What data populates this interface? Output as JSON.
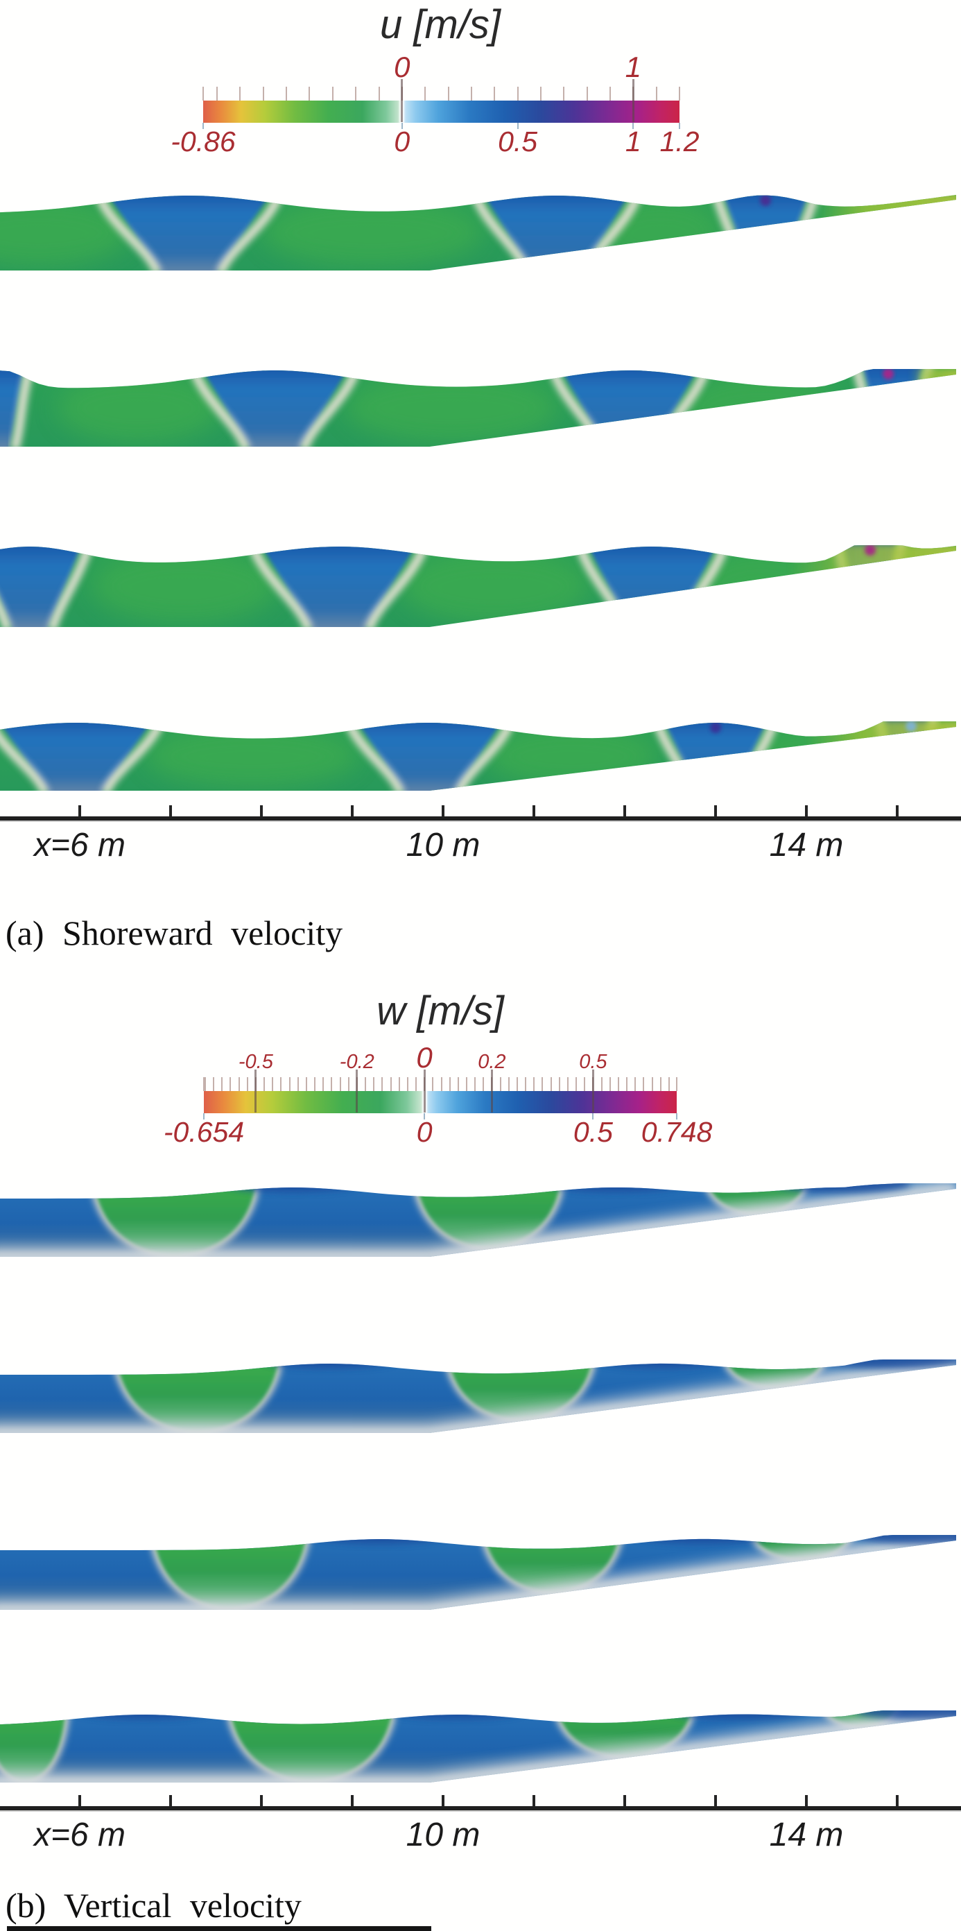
{
  "colors": {
    "label_red": "#a92d32",
    "text_dark": "#1b1b1b",
    "body_green": "#2da156",
    "crest_blue": "#2273bc",
    "band_white": "#e9e3d6",
    "shallow_yellow_green": "#a0c337",
    "breaking_magenta": "#b02387"
  },
  "chart_data": [
    {
      "id": "a",
      "type": "heatmap",
      "subtype": "contour time snapshots of velocity field over a sloping beach",
      "title": "u [m/s]",
      "caption": "(a) Shoreward velocity",
      "quantity": "Shoreward velocity",
      "units": "m/s",
      "colorbar": {
        "min": -0.86,
        "max": 1.2,
        "minor_tick_step": 0.1,
        "above_labels": [
          {
            "value": 0,
            "label": "0",
            "size": "lg"
          },
          {
            "value": 1,
            "label": "1",
            "size": "lg"
          }
        ],
        "below_labels": [
          {
            "value": -0.86,
            "label": "-0.86"
          },
          {
            "value": 0,
            "label": "0"
          },
          {
            "value": 0.5,
            "label": "0.5"
          },
          {
            "value": 1,
            "label": "1"
          },
          {
            "value": 1.2,
            "label": "1.2"
          }
        ]
      },
      "x_axis": {
        "unit": "m",
        "tick_min": 6,
        "tick_max": 15,
        "tick_step": 1,
        "labels": [
          {
            "value": 6,
            "label": "x=6 m"
          },
          {
            "value": 10,
            "label": "10 m"
          },
          {
            "value": 14,
            "label": "14 m"
          }
        ]
      },
      "bathymetry": {
        "flat_bottom_until_m": 9.85,
        "shore_tip_m": 15.65
      },
      "snapshots": [
        {
          "crests_m": [
            7.2,
            11.25,
            13.55
          ],
          "crest_halfwidth_m": [
            0.95,
            0.85,
            0.5
          ],
          "markers": [
            {
              "m": 13.55,
              "color": "#4c2b90"
            }
          ],
          "shallow_from_m": 14.1
        },
        {
          "crests_m": [
            5.15,
            8.15,
            12.05,
            14.95
          ],
          "crest_halfwidth_m": [
            0.25,
            0.85,
            0.8,
            0.35
          ],
          "markers": [
            {
              "m": 14.9,
              "color": "#b02387"
            }
          ],
          "shallow_from_m": 15.15
        },
        {
          "crests_m": [
            5.45,
            8.85,
            12.3,
            14.7
          ],
          "crest_halfwidth_m": [
            0.6,
            0.9,
            0.75,
            0.3
          ],
          "markers": [
            {
              "m": 14.7,
              "color": "#a82387"
            }
          ],
          "shallow_from_m": 13.8,
          "left_pale": true
        },
        {
          "crests_m": [
            5.95,
            9.85,
            13.0,
            15.1
          ],
          "crest_halfwidth_m": [
            0.9,
            0.85,
            0.6,
            0.25
          ],
          "markers": [
            {
              "m": 13.0,
              "color": "#3b2f95"
            },
            {
              "m": 15.15,
              "color": "#7fb2d9"
            }
          ],
          "shallow_from_m": 14.0,
          "left_pale": true
        }
      ]
    },
    {
      "id": "b",
      "type": "heatmap",
      "subtype": "contour time snapshots of velocity field over a sloping beach",
      "title": "w [m/s]",
      "caption": "(b) Vertical velocity",
      "quantity": "Vertical velocity",
      "units": "m/s",
      "colorbar": {
        "min": -0.654,
        "max": 0.748,
        "minor_tick_step": 0.025,
        "above_labels": [
          {
            "value": -0.5,
            "label": "-0.5",
            "size": "sm"
          },
          {
            "value": -0.2,
            "label": "-0.2",
            "size": "sm"
          },
          {
            "value": 0,
            "label": "0",
            "size": "lg"
          },
          {
            "value": 0.2,
            "label": "0.2",
            "size": "sm"
          },
          {
            "value": 0.5,
            "label": "0.5",
            "size": "sm"
          }
        ],
        "below_labels": [
          {
            "value": -0.654,
            "label": "-0.654"
          },
          {
            "value": 0,
            "label": "0"
          },
          {
            "value": 0.5,
            "label": "0.5"
          },
          {
            "value": 0.748,
            "label": "0.748"
          }
        ]
      },
      "x_axis": {
        "unit": "m",
        "tick_min": 6,
        "tick_max": 15,
        "tick_step": 1,
        "labels": [
          {
            "value": 6,
            "label": "x=6 m"
          },
          {
            "value": 10,
            "label": "10 m"
          },
          {
            "value": 14,
            "label": "14 m"
          }
        ]
      },
      "bathymetry": {
        "flat_bottom_until_m": 9.85,
        "shore_tip_m": 15.65
      },
      "snapshots": [
        {
          "blobs_m": [
            [
              7.05,
              0.9
            ],
            [
              10.5,
              0.8
            ],
            [
              13.45,
              0.55
            ]
          ],
          "crests_m": [
            8.35,
            11.9,
            14.4
          ]
        },
        {
          "blobs_m": [
            [
              7.3,
              0.9
            ],
            [
              10.85,
              0.8
            ],
            [
              13.65,
              0.55
            ]
          ],
          "crests_m": [
            8.75,
            12.4,
            14.95
          ]
        },
        {
          "blobs_m": [
            [
              7.65,
              0.85
            ],
            [
              11.2,
              0.75
            ],
            [
              13.95,
              0.55
            ]
          ],
          "crests_m": [
            9.3,
            12.85,
            15.3
          ]
        },
        {
          "blobs_m": [
            [
              5.4,
              0.45
            ],
            [
              8.55,
              0.9
            ],
            [
              12.0,
              0.75
            ],
            [
              14.6,
              0.4
            ]
          ],
          "crests_m": [
            6.7,
            10.15,
            13.25,
            15.3
          ]
        }
      ]
    }
  ],
  "artifacts": {
    "bottom_crop_strip": true
  }
}
